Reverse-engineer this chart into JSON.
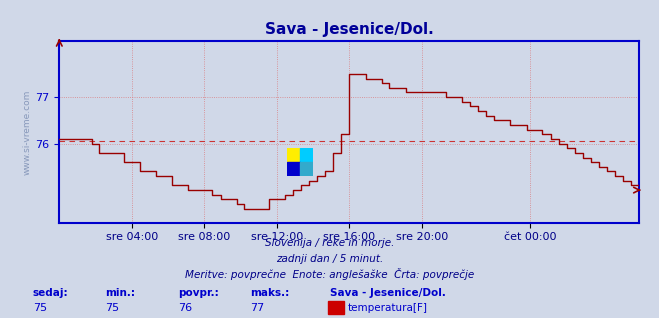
{
  "title": "Sava - Jesenice/Dol.",
  "bg_color": "#d0d8e8",
  "plot_bg_color": "#d0d8e8",
  "line_color": "#990000",
  "axis_color": "#0000cc",
  "grid_color": "#dd6666",
  "dashed_line_value": 76.05,
  "dashed_line_color": "#cc3333",
  "ylim_min": 74.3,
  "ylim_max": 78.2,
  "yticks": [
    76,
    77
  ],
  "ytick_fontsize": 8,
  "xtick_fontsize": 8,
  "xlabel_color": "#000088",
  "title_color": "#000099",
  "title_fontsize": 11,
  "footer_line1": "Slovenija / reke in morje.",
  "footer_line2": "zadnji dan / 5 minut.",
  "footer_line3": "Meritve: povprečne  Enote: anglešaške  Črta: povprečje",
  "footer_fontsize": 7.5,
  "label_sedaj": "sedaj:",
  "label_min": "min.:",
  "label_povpr": "povpr.:",
  "label_maks": "maks.:",
  "val_sedaj": "75",
  "val_min": "75",
  "val_povpr": "76",
  "val_maks": "77",
  "legend_name": "Sava - Jesenice/Dol.",
  "legend_label": "temperatura[F]",
  "legend_color": "#cc0000",
  "xtick_labels": [
    "sre 04:00",
    "sre 08:00",
    "sre 12:00",
    "sre 16:00",
    "sre 20:00",
    "čet 00:00"
  ],
  "ylabel_text": "www.si-vreme.com",
  "ylabel_color": "#8899bb",
  "ylabel_fontsize": 6.5,
  "x_data": [
    0.0,
    0.014,
    0.028,
    0.042,
    0.056,
    0.069,
    0.083,
    0.097,
    0.111,
    0.125,
    0.139,
    0.153,
    0.167,
    0.181,
    0.194,
    0.208,
    0.222,
    0.236,
    0.25,
    0.264,
    0.278,
    0.292,
    0.306,
    0.319,
    0.333,
    0.347,
    0.361,
    0.375,
    0.389,
    0.403,
    0.417,
    0.431,
    0.444,
    0.458,
    0.472,
    0.486,
    0.5,
    0.514,
    0.528,
    0.542,
    0.556,
    0.569,
    0.583,
    0.597,
    0.611,
    0.625,
    0.639,
    0.653,
    0.667,
    0.681,
    0.694,
    0.708,
    0.722,
    0.736,
    0.75,
    0.764,
    0.778,
    0.792,
    0.806,
    0.819,
    0.833,
    0.847,
    0.861,
    0.875,
    0.889,
    0.903,
    0.917,
    0.931,
    0.944,
    0.958,
    0.972,
    0.986,
    1.0
  ],
  "y_data": [
    76.1,
    76.1,
    76.1,
    76.1,
    76.0,
    75.8,
    75.8,
    75.8,
    75.6,
    75.6,
    75.4,
    75.4,
    75.3,
    75.3,
    75.1,
    75.1,
    75.0,
    75.0,
    75.0,
    74.9,
    74.8,
    74.8,
    74.7,
    74.6,
    74.6,
    74.6,
    74.8,
    74.8,
    74.9,
    75.0,
    75.1,
    75.2,
    75.3,
    75.4,
    75.8,
    76.2,
    77.5,
    77.5,
    77.4,
    77.4,
    77.3,
    77.2,
    77.2,
    77.1,
    77.1,
    77.1,
    77.1,
    77.1,
    77.0,
    77.0,
    76.9,
    76.8,
    76.7,
    76.6,
    76.5,
    76.5,
    76.4,
    76.4,
    76.3,
    76.3,
    76.2,
    76.1,
    76.0,
    75.9,
    75.8,
    75.7,
    75.6,
    75.5,
    75.4,
    75.3,
    75.2,
    75.1,
    75.0
  ]
}
